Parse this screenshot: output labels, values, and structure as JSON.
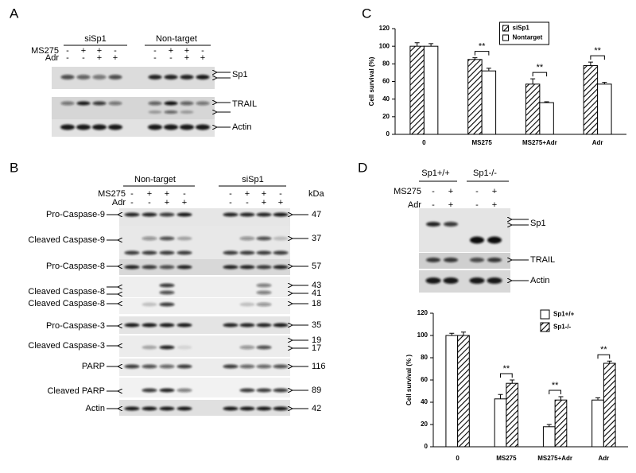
{
  "panels": {
    "A": {
      "label": "A",
      "groups": [
        "siSp1",
        "Non-target"
      ],
      "treatments": [
        {
          "name": "MS275",
          "signs": [
            "-",
            "+",
            "+",
            "-",
            "-",
            "+",
            "+",
            "-"
          ]
        },
        {
          "name": "Adr",
          "signs": [
            "-",
            "-",
            "+",
            "+",
            "-",
            "-",
            "+",
            "+"
          ]
        }
      ],
      "bands": [
        "Sp1",
        "TRAIL",
        "Actin"
      ]
    },
    "B": {
      "label": "B",
      "groups": [
        "Non-target",
        "siSp1"
      ],
      "unit": "kDa",
      "treatments": [
        {
          "name": "MS275",
          "signs": [
            "-",
            "+",
            "+",
            "-",
            "-",
            "+",
            "+",
            "-"
          ]
        },
        {
          "name": "Adr",
          "signs": [
            "-",
            "-",
            "+",
            "+",
            "-",
            "-",
            "+",
            "+"
          ]
        }
      ],
      "rows": [
        {
          "name": "Pro-Caspase-9",
          "kda": [
            47
          ]
        },
        {
          "name": "Cleaved Caspase-9",
          "kda": [
            37
          ]
        },
        {
          "name": "Pro-Caspase-8",
          "kda": [
            57
          ]
        },
        {
          "name": "Cleaved Caspase-8",
          "kda": [
            43,
            41
          ]
        },
        {
          "name": "Cleaved Caspase-8",
          "kda": [
            18
          ]
        },
        {
          "name": "Pro-Caspase-3",
          "kda": [
            35
          ]
        },
        {
          "name": "Cleaved Caspase-3",
          "kda": [
            19,
            17
          ]
        },
        {
          "name": "PARP",
          "kda": [
            116
          ]
        },
        {
          "name": "Cleaved PARP",
          "kda": [
            89
          ]
        },
        {
          "name": "Actin",
          "kda": [
            42
          ]
        }
      ]
    },
    "C": {
      "label": "C"
    },
    "D": {
      "label": "D",
      "groups": [
        "Sp1+/+",
        "Sp1-/-"
      ],
      "treatments": [
        {
          "name": "MS275",
          "signs": [
            "-",
            "+",
            "-",
            "+"
          ]
        },
        {
          "name": "Adr",
          "signs": [
            "-",
            "+",
            "-",
            "+"
          ]
        }
      ],
      "bands": [
        "Sp1",
        "TRAIL",
        "Actin"
      ]
    }
  },
  "chart_data": [
    {
      "type": "bar",
      "y_label": "Cell survival (%)",
      "categories": [
        "0",
        "MS275",
        "MS275+Adr",
        "Adr"
      ],
      "ylim": [
        0,
        120
      ],
      "yticks": [
        0,
        20,
        40,
        60,
        80,
        100,
        120
      ],
      "legend": "top",
      "series": [
        {
          "name": "siSp1",
          "color": "#000000",
          "hatch": true,
          "values": [
            100,
            85,
            57,
            78
          ],
          "errors": [
            4,
            2,
            6,
            4
          ]
        },
        {
          "name": "Nontarget",
          "color": "#000000",
          "hatch": false,
          "values": [
            100,
            72,
            36,
            57
          ],
          "errors": [
            3,
            3,
            1,
            2
          ]
        }
      ],
      "annotations": [
        {
          "category": "MS275",
          "text": "**"
        },
        {
          "category": "MS275+Adr",
          "text": "**"
        },
        {
          "category": "Adr",
          "text": "**"
        }
      ]
    },
    {
      "type": "bar",
      "y_label": "Cell survival (% )",
      "categories": [
        "0",
        "MS275",
        "MS275+Adr",
        "Adr"
      ],
      "ylim": [
        0,
        120
      ],
      "yticks": [
        0,
        20,
        40,
        60,
        80,
        100,
        120
      ],
      "legend": "top-right",
      "series": [
        {
          "name": "Sp1+/+",
          "color": "#000000",
          "hatch": false,
          "values": [
            100,
            43,
            18,
            42
          ],
          "errors": [
            2,
            4,
            2,
            2
          ]
        },
        {
          "name": "Sp1-/-",
          "color": "#000000",
          "hatch": true,
          "values": [
            100,
            57,
            42,
            75
          ],
          "errors": [
            3,
            3,
            3,
            2
          ]
        }
      ],
      "annotations": [
        {
          "category": "MS275",
          "text": "**"
        },
        {
          "category": "MS275+Adr",
          "text": "**"
        },
        {
          "category": "Adr",
          "text": "**"
        }
      ]
    }
  ]
}
